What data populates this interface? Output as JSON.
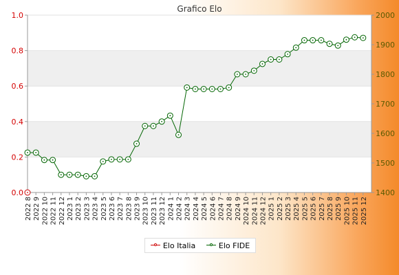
{
  "chart_data": {
    "type": "line",
    "title": "Grafico Elo",
    "x": [
      "2022 8",
      "2022 9",
      "2022 10",
      "2022 11",
      "2022 12",
      "2023 1",
      "2023 2",
      "2023 3",
      "2023 4",
      "2023 5",
      "2023 6",
      "2023 7",
      "2023 8",
      "2023 9",
      "2023 10",
      "2023 11",
      "2023 12",
      "2024 1",
      "2024 2",
      "2024 3",
      "2024 4",
      "2024 5",
      "2024 6",
      "2024 7",
      "2024 8",
      "2024 9",
      "2024 10",
      "2024 11",
      "2024 12",
      "2025 1",
      "2025 2",
      "2025 3",
      "2025 4",
      "2025 5",
      "2025 6",
      "2025 7",
      "2025 8",
      "2025 9",
      "2025 10",
      "2025 11",
      "2025 12"
    ],
    "series": [
      {
        "name": "Elo Italia",
        "axis": "left",
        "color": "#cc0000",
        "values": [
          0,
          null,
          null,
          null,
          null,
          null,
          null,
          null,
          null,
          null,
          null,
          null,
          null,
          null,
          null,
          null,
          null,
          null,
          null,
          null,
          null,
          null,
          null,
          null,
          null,
          null,
          null,
          null,
          null,
          null,
          null,
          null,
          null,
          null,
          null,
          null,
          null,
          null,
          null,
          null,
          null
        ]
      },
      {
        "name": "Elo FIDE",
        "axis": "right",
        "color": "#006400",
        "values": [
          1535,
          1535,
          1510,
          1510,
          1460,
          1460,
          1460,
          1455,
          1455,
          1505,
          1512,
          1512,
          1512,
          1565,
          1625,
          1625,
          1640,
          1660,
          1595,
          1755,
          1750,
          1750,
          1750,
          1750,
          1755,
          1800,
          1800,
          1812,
          1835,
          1850,
          1850,
          1868,
          1890,
          1915,
          1915,
          1915,
          1903,
          1897,
          1917,
          1925,
          1923
        ]
      }
    ],
    "y_left": {
      "min": 0.0,
      "max": 1.0,
      "ticks": [
        "0.0",
        "0.2",
        "0.4",
        "0.6",
        "0.8",
        "1.0"
      ]
    },
    "y_right": {
      "min": 1400,
      "max": 2000,
      "ticks": [
        "1400",
        "1500",
        "1600",
        "1700",
        "1800",
        "1900",
        "2000"
      ]
    },
    "grid": "horizontal bands",
    "legend": "bottom-center",
    "colors": {
      "left_axis": "#d40000",
      "right_axis": "#5a5a00",
      "band": "#efefef"
    }
  }
}
